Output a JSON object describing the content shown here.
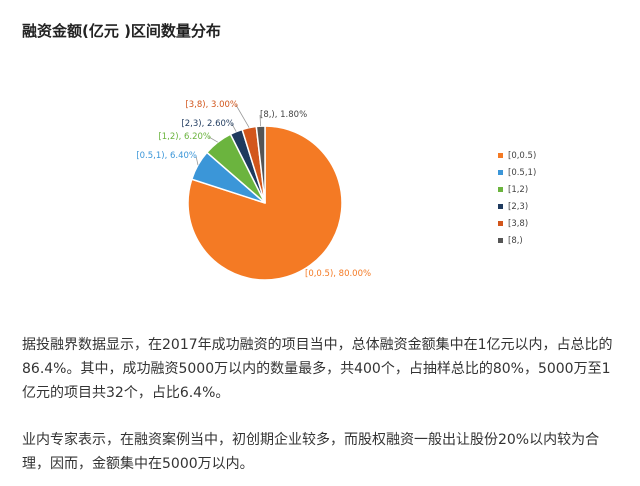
{
  "title": "融资金额(亿元 )区间数量分布",
  "chart_data": {
    "type": "pie",
    "series": [
      {
        "label": "[0,0.5)",
        "value": 80.0,
        "color": "#F47A24",
        "callout": "[0,0.5), 80.00%"
      },
      {
        "label": "[0.5,1)",
        "value": 6.4,
        "color": "#3B96D8",
        "callout": "[0.5,1), 6.40%"
      },
      {
        "label": "[1,2)",
        "value": 6.2,
        "color": "#6BB43E",
        "callout": "[1,2), 6.20%"
      },
      {
        "label": "[2,3)",
        "value": 2.6,
        "color": "#1F3A5E",
        "callout": "[2,3), 2.60%"
      },
      {
        "label": "[3,8)",
        "value": 3.0,
        "color": "#D2561C",
        "callout": "[3,8), 3.00%"
      },
      {
        "label": "[8,)",
        "value": 1.8,
        "color": "#555555",
        "callout": "[8,), 1.80%"
      }
    ],
    "legend_position": "right"
  },
  "paragraphs": [
    "据投融界数据显示，在2017年成功融资的项目当中，总体融资金额集中在1亿元以内，占总比的86.4%。其中，成功融资5000万以内的数量最多，共400个，占抽样总比的80%，5000万至1亿元的项目共32个，占比6.4%。",
    "业内专家表示，在融资案例当中，初创期企业较多，而股权融资一般出让股份20%以内较为合理，因而，金额集中在5000万以内。"
  ]
}
